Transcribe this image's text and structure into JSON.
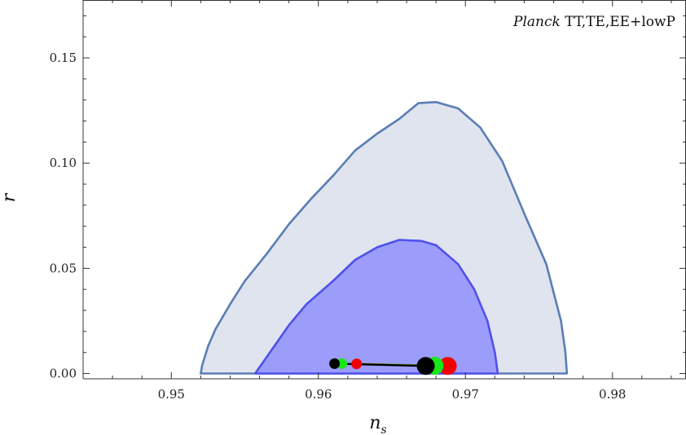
{
  "chart_data": {
    "type": "scatter",
    "title": "",
    "xlabel": "n",
    "xlabel_sub": "s",
    "ylabel": "r",
    "xlim": [
      0.944,
      0.985
    ],
    "ylim": [
      -0.0025,
      0.1775
    ],
    "xticks": [
      {
        "value": 0.95,
        "label": "0.95"
      },
      {
        "value": 0.96,
        "label": "0.96"
      },
      {
        "value": 0.97,
        "label": "0.97"
      },
      {
        "value": 0.98,
        "label": "0.98"
      }
    ],
    "yticks": [
      {
        "value": 0.0,
        "label": "0.00"
      },
      {
        "value": 0.05,
        "label": "0.05"
      },
      {
        "value": 0.1,
        "label": "0.10"
      },
      {
        "value": 0.15,
        "label": "0.15"
      }
    ],
    "annotation": {
      "italic": "Planck",
      "text": " TT,TE,EE+lowP"
    },
    "contours": [
      {
        "level": "95%",
        "fill": "#dfe4ee",
        "stroke": "#5a7eb4",
        "points": [
          [
            0.952,
            0.0
          ],
          [
            0.9521,
            0.004
          ],
          [
            0.9525,
            0.013
          ],
          [
            0.953,
            0.021
          ],
          [
            0.954,
            0.033
          ],
          [
            0.955,
            0.044
          ],
          [
            0.9565,
            0.057
          ],
          [
            0.958,
            0.071
          ],
          [
            0.9595,
            0.083
          ],
          [
            0.961,
            0.094
          ],
          [
            0.9625,
            0.106
          ],
          [
            0.964,
            0.114
          ],
          [
            0.9655,
            0.121
          ],
          [
            0.9668,
            0.1285
          ],
          [
            0.968,
            0.129
          ],
          [
            0.9695,
            0.126
          ],
          [
            0.971,
            0.117
          ],
          [
            0.9725,
            0.101
          ],
          [
            0.974,
            0.076
          ],
          [
            0.9755,
            0.052
          ],
          [
            0.9765,
            0.025
          ],
          [
            0.9768,
            0.01
          ],
          [
            0.9769,
            0.0
          ]
        ]
      },
      {
        "level": "68%",
        "fill": "#9c9cfb",
        "stroke": "#5050ec",
        "points": [
          [
            0.9557,
            0.0
          ],
          [
            0.9562,
            0.005
          ],
          [
            0.957,
            0.013
          ],
          [
            0.958,
            0.023
          ],
          [
            0.9592,
            0.033
          ],
          [
            0.961,
            0.044
          ],
          [
            0.9625,
            0.054
          ],
          [
            0.964,
            0.06
          ],
          [
            0.9655,
            0.0635
          ],
          [
            0.967,
            0.063
          ],
          [
            0.968,
            0.061
          ],
          [
            0.9695,
            0.052
          ],
          [
            0.9706,
            0.04
          ],
          [
            0.9715,
            0.025
          ],
          [
            0.972,
            0.01
          ],
          [
            0.9722,
            0.0
          ]
        ]
      }
    ],
    "series": [
      {
        "line_color": "#e83030",
        "points": [
          {
            "x": 0.9626,
            "y": 0.0046,
            "color": "#f20000",
            "size": "small"
          },
          {
            "x": 0.9688,
            "y": 0.0036,
            "color": "#f20000",
            "size": "large"
          }
        ]
      },
      {
        "line_color": "#22c322",
        "points": [
          {
            "x": 0.9616,
            "y": 0.0047,
            "color": "#18e818",
            "size": "small"
          },
          {
            "x": 0.9679,
            "y": 0.0037,
            "color": "#18e818",
            "size": "large"
          }
        ]
      },
      {
        "line_color": "#000000",
        "points": [
          {
            "x": 0.9611,
            "y": 0.0047,
            "color": "#000000",
            "size": "small"
          },
          {
            "x": 0.9673,
            "y": 0.0036,
            "color": "#000000",
            "size": "large"
          }
        ]
      }
    ]
  }
}
